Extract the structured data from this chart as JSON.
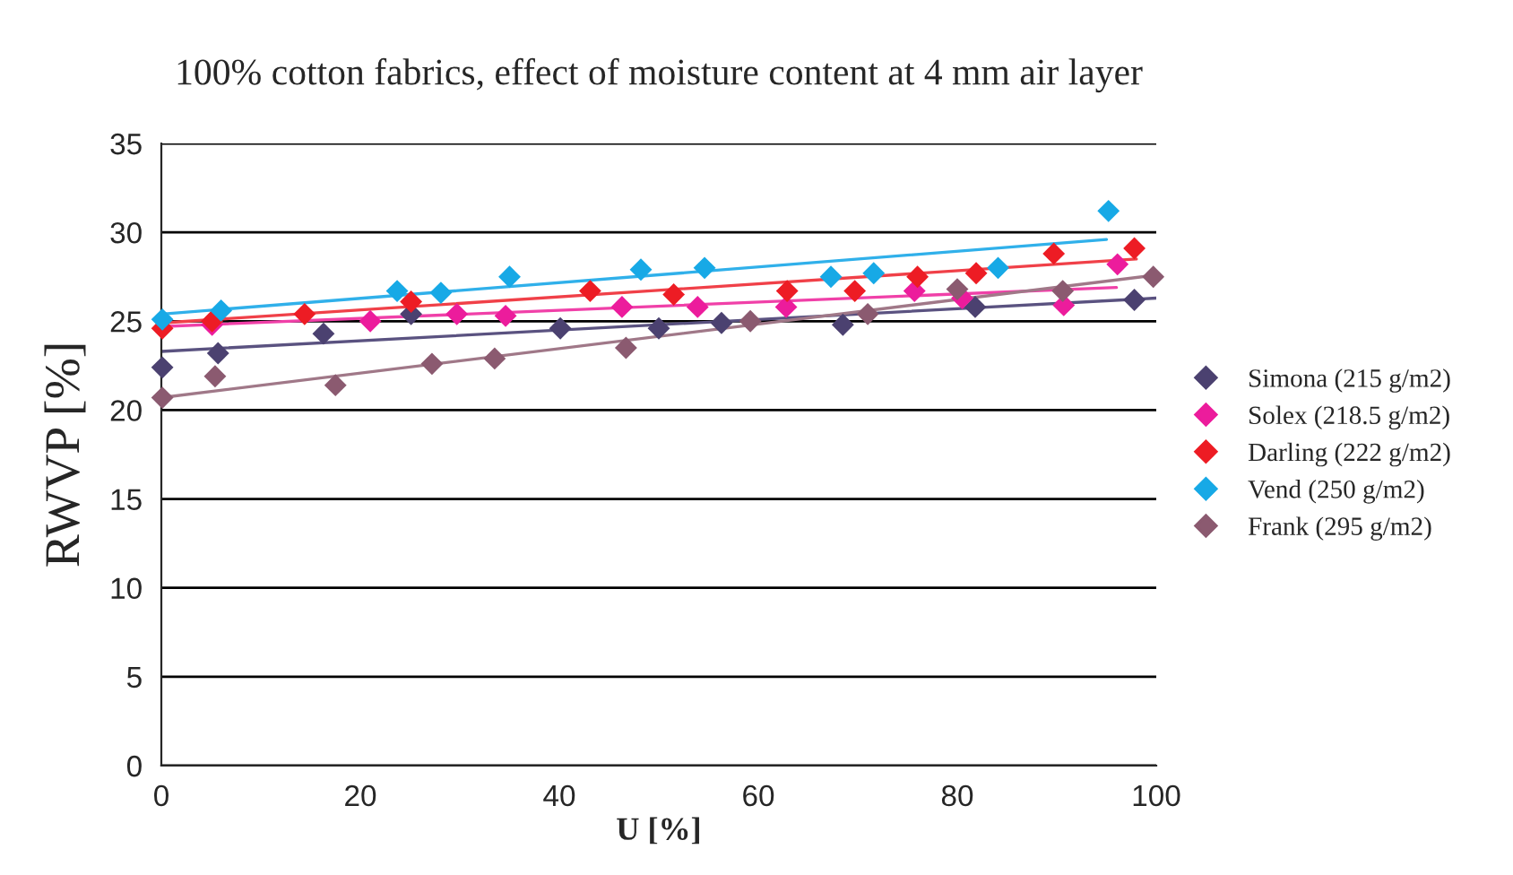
{
  "chart_data": {
    "type": "scatter",
    "title": "100% cotton fabrics, effect of moisture content at 4 mm air layer",
    "xlabel": "U [%]",
    "ylabel": "RWVP [%]",
    "xlim": [
      0,
      100
    ],
    "xticks": [
      0,
      20,
      40,
      60,
      80,
      100
    ],
    "ylim": [
      0,
      35
    ],
    "yticks": [
      0,
      5,
      10,
      15,
      20,
      25,
      30,
      35
    ],
    "grid": "y",
    "legend": "right",
    "marker": "diamond",
    "series": [
      {
        "name": "Simona (215 g/m2)",
        "color": "#4b4170",
        "x": [
          0.1,
          5.7,
          16.3,
          25.1,
          40.1,
          50,
          56.3,
          68.5,
          81.8,
          97.8
        ],
        "values": [
          22.4,
          23.2,
          24.3,
          25.4,
          24.6,
          24.6,
          24.9,
          24.8,
          25.8,
          26.2
        ]
      },
      {
        "name": "Solex (218.5 g/m2)",
        "color": "#ec1c9c",
        "x": [
          5.1,
          21,
          29.7,
          34.6,
          46.3,
          53.9,
          62.8,
          75.7,
          80.5,
          90.7,
          96.1
        ],
        "values": [
          24.8,
          25.0,
          25.4,
          25.3,
          25.8,
          25.8,
          25.8,
          26.7,
          26.3,
          25.9,
          28.2
        ]
      },
      {
        "name": "Darling (222 g/m2)",
        "color": "#ed1c24",
        "x": [
          0.1,
          5.1,
          14.4,
          25.1,
          43.1,
          51.5,
          62.9,
          69.7,
          76,
          81.9,
          89.7,
          97.8
        ],
        "values": [
          24.6,
          25.0,
          25.4,
          26.1,
          26.7,
          26.5,
          26.7,
          26.7,
          27.5,
          27.7,
          28.8,
          29.1
        ]
      },
      {
        "name": "Vend (250 g/m2)",
        "color": "#17a9e6",
        "x": [
          0.1,
          6,
          23.7,
          28.1,
          35,
          48.2,
          54.6,
          67.3,
          71.6,
          84.1,
          95.2
        ],
        "values": [
          25.1,
          25.6,
          26.7,
          26.6,
          27.5,
          27.9,
          28.0,
          27.5,
          27.7,
          28.0,
          31.2
        ]
      },
      {
        "name": "Frank (295 g/m2)",
        "color": "#8b5a70",
        "x": [
          0.1,
          5.4,
          17.5,
          27.2,
          33.5,
          46.7,
          59.2,
          71,
          80,
          90.6,
          99.7
        ],
        "values": [
          20.7,
          21.9,
          21.4,
          22.6,
          22.9,
          23.5,
          25.0,
          25.4,
          26.8,
          26.7,
          27.5
        ]
      },
      {
        "type": "line",
        "marker": "none",
        "color": "#5a5280",
        "x": [
          0,
          100
        ],
        "values": [
          23.3,
          26.3
        ]
      },
      {
        "type": "line",
        "marker": "none",
        "color": "#f040a8",
        "x": [
          0,
          96
        ],
        "values": [
          24.7,
          26.9
        ]
      },
      {
        "type": "line",
        "marker": "none",
        "color": "#f04048",
        "x": [
          0,
          98
        ],
        "values": [
          24.9,
          28.5
        ]
      },
      {
        "type": "line",
        "marker": "none",
        "color": "#30b0ea",
        "x": [
          0,
          95
        ],
        "values": [
          25.4,
          29.6
        ]
      },
      {
        "type": "line",
        "marker": "none",
        "color": "#a07888",
        "x": [
          0,
          100
        ],
        "values": [
          20.7,
          27.6
        ]
      }
    ]
  }
}
